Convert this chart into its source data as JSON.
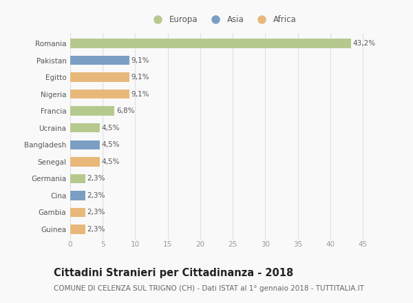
{
  "categories": [
    "Romania",
    "Pakistan",
    "Egitto",
    "Nigeria",
    "Francia",
    "Ucraina",
    "Bangladesh",
    "Senegal",
    "Germania",
    "Cina",
    "Gambia",
    "Guinea"
  ],
  "values": [
    43.2,
    9.1,
    9.1,
    9.1,
    6.8,
    4.5,
    4.5,
    4.5,
    2.3,
    2.3,
    2.3,
    2.3
  ],
  "labels": [
    "43,2%",
    "9,1%",
    "9,1%",
    "9,1%",
    "6,8%",
    "4,5%",
    "4,5%",
    "4,5%",
    "2,3%",
    "2,3%",
    "2,3%",
    "2,3%"
  ],
  "continents": [
    "Europa",
    "Asia",
    "Africa",
    "Africa",
    "Europa",
    "Europa",
    "Asia",
    "Africa",
    "Europa",
    "Asia",
    "Africa",
    "Africa"
  ],
  "colors": {
    "Europa": "#b5c98e",
    "Asia": "#7b9fc4",
    "Africa": "#e8b87a"
  },
  "legend_colors": {
    "Europa": "#b5c98e",
    "Asia": "#7b9fc4",
    "Africa": "#e8b87a"
  },
  "xlim": [
    0,
    47
  ],
  "xticks": [
    0,
    5,
    10,
    15,
    20,
    25,
    30,
    35,
    40,
    45
  ],
  "title": "Cittadini Stranieri per Cittadinanza - 2018",
  "subtitle": "COMUNE DI CELENZA SUL TRIGNO (CH) - Dati ISTAT al 1° gennaio 2018 - TUTTITALIA.IT",
  "background_color": "#f9f9f9",
  "grid_color": "#e0e0e0",
  "bar_height": 0.55,
  "title_fontsize": 10.5,
  "subtitle_fontsize": 7.5,
  "label_fontsize": 7.5,
  "tick_fontsize": 7.5,
  "legend_fontsize": 8.5
}
